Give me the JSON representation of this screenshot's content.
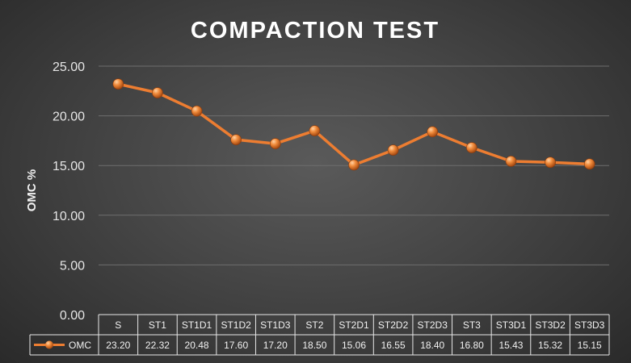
{
  "chart_data": {
    "type": "line",
    "title": "COMPACTION TEST",
    "ylabel": "OMC %",
    "xlabel": "",
    "ylim": [
      0,
      25
    ],
    "yticks": [
      "0.00",
      "5.00",
      "10.00",
      "15.00",
      "20.00",
      "25.00"
    ],
    "grid": true,
    "categories": [
      "S",
      "ST1",
      "ST1D1",
      "ST1D2",
      "ST1D3",
      "ST2",
      "ST2D1",
      "ST2D2",
      "ST2D3",
      "ST3",
      "ST3D1",
      "ST3D2",
      "ST3D3"
    ],
    "series": [
      {
        "name": "OMC",
        "values": [
          23.2,
          22.32,
          20.48,
          17.6,
          17.2,
          18.5,
          15.06,
          16.55,
          18.4,
          16.8,
          15.43,
          15.32,
          15.15
        ],
        "labels": [
          "23.20",
          "22.32",
          "20.48",
          "17.60",
          "17.20",
          "18.50",
          "15.06",
          "16.55",
          "18.40",
          "16.80",
          "15.43",
          "15.32",
          "15.15"
        ],
        "color": "#ed7d31"
      }
    ],
    "data_table": true
  }
}
